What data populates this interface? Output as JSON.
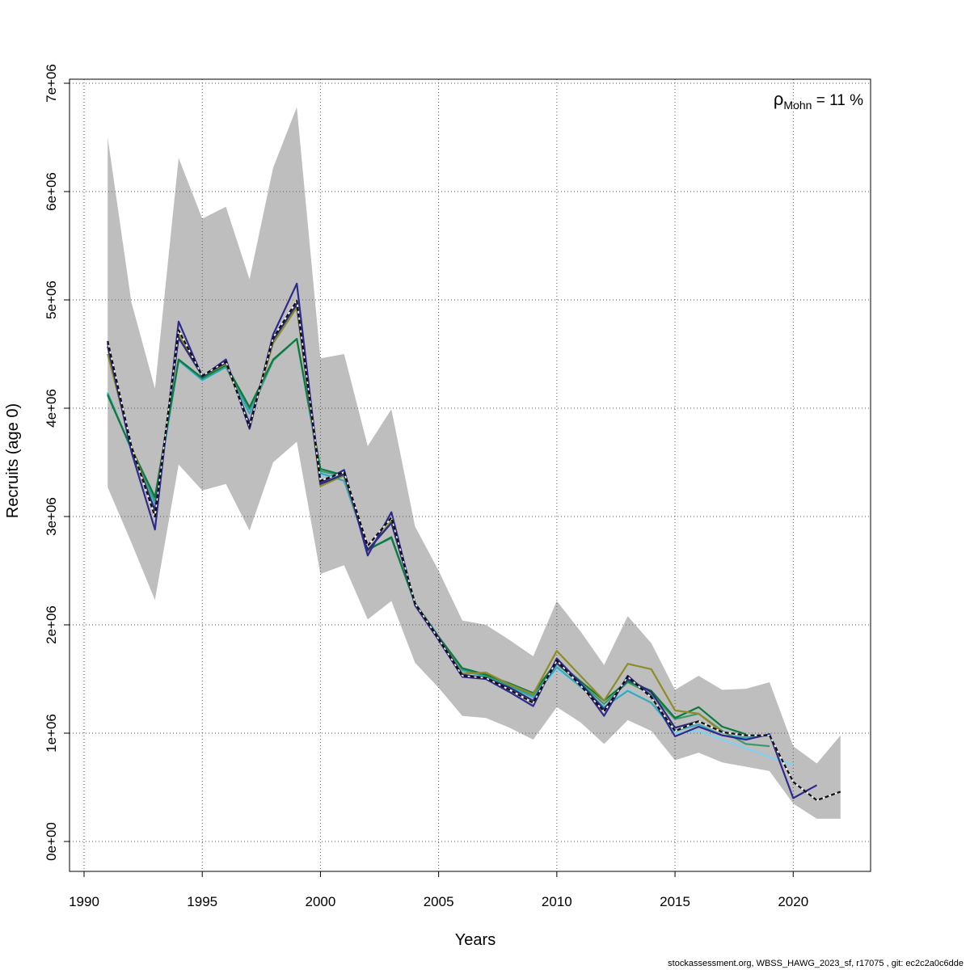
{
  "chart_data": {
    "type": "line",
    "xlabel": "Years",
    "ylabel": "Recruits (age 0)",
    "xlim": [
      1990,
      2023
    ],
    "ylim": [
      -300000,
      7030000
    ],
    "x_ticks": [
      1990,
      1995,
      2000,
      2005,
      2010,
      2015,
      2020
    ],
    "x_tick_labels": [
      "1990",
      "1995",
      "2000",
      "2005",
      "2010",
      "2015",
      "2020"
    ],
    "y_ticks": [
      0,
      1000000,
      2000000,
      3000000,
      4000000,
      5000000,
      6000000,
      7000000
    ],
    "y_tick_labels": [
      "0e+00",
      "1e+06",
      "2e+06",
      "3e+06",
      "4e+06",
      "5e+06",
      "6e+06",
      "7e+06"
    ],
    "grid": true,
    "annotation": {
      "symbol": "ρ",
      "subscript": "Mohn",
      "text": " = 11 %"
    },
    "confidence_band": {
      "x": [
        1991,
        1992,
        1993,
        1994,
        1995,
        1996,
        1997,
        1998,
        1999,
        2000,
        2001,
        2002,
        2003,
        2004,
        2005,
        2006,
        2007,
        2008,
        2009,
        2010,
        2011,
        2012,
        2013,
        2014,
        2015,
        2016,
        2017,
        2018,
        2019,
        2020,
        2021,
        2022
      ],
      "upper": [
        6500000,
        4980000,
        4180000,
        6310000,
        5750000,
        5860000,
        5190000,
        6220000,
        6780000,
        4460000,
        4500000,
        3650000,
        3990000,
        2910000,
        2500000,
        2040000,
        2000000,
        1860000,
        1710000,
        2220000,
        1940000,
        1630000,
        2080000,
        1830000,
        1400000,
        1530000,
        1400000,
        1410000,
        1470000,
        880000,
        720000,
        980000
      ],
      "lower": [
        3270000,
        2760000,
        2230000,
        3480000,
        3240000,
        3300000,
        2870000,
        3500000,
        3690000,
        2470000,
        2550000,
        2050000,
        2220000,
        1650000,
        1420000,
        1160000,
        1140000,
        1050000,
        940000,
        1240000,
        1100000,
        900000,
        1120000,
        1020000,
        750000,
        820000,
        730000,
        690000,
        650000,
        350000,
        210000,
        210000
      ],
      "color": "#bebebe"
    },
    "series": [
      {
        "color": "#80d0f0",
        "dashed": false,
        "x": [
          1991,
          1992,
          1993,
          1994,
          1995,
          1996,
          1997,
          1998,
          1999,
          2000,
          2001,
          2002,
          2003,
          2004,
          2005,
          2006,
          2007,
          2008,
          2009,
          2010,
          2011,
          2012,
          2013,
          2014,
          2015,
          2016,
          2017,
          2018,
          2019,
          2020
        ],
        "values": [
          4150000,
          3610000,
          3100000,
          4440000,
          4250000,
          4380000,
          3960000,
          4440000,
          4640000,
          3380000,
          3380000,
          2700000,
          2800000,
          2200000,
          1890000,
          1580000,
          1530000,
          1440000,
          1340000,
          1590000,
          1440000,
          1240000,
          1400000,
          1280000,
          1000000,
          1020000,
          940000,
          860000,
          780000,
          710000
        ]
      },
      {
        "color": "#3aa8b8",
        "dashed": false,
        "x": [
          1991,
          1992,
          1993,
          1994,
          1995,
          1996,
          1997,
          1998,
          1999,
          2000,
          2001,
          2002,
          2003,
          2004,
          2005,
          2006,
          2007,
          2008,
          2009,
          2010,
          2011,
          2012,
          2013,
          2014,
          2015,
          2016,
          2017,
          2018,
          2019
        ],
        "values": [
          4140000,
          3620000,
          3120000,
          4440000,
          4260000,
          4380000,
          3950000,
          4440000,
          4640000,
          3400000,
          3330000,
          2700000,
          2800000,
          2200000,
          1890000,
          1580000,
          1520000,
          1430000,
          1330000,
          1610000,
          1430000,
          1240000,
          1390000,
          1280000,
          1020000,
          1080000,
          980000,
          960000,
          980000
        ]
      },
      {
        "color": "#3c9a73",
        "dashed": false,
        "x": [
          1991,
          1992,
          1993,
          1994,
          1995,
          1996,
          1997,
          1998,
          1999,
          2000,
          2001,
          2002,
          2003,
          2004,
          2005,
          2006,
          2007,
          2008,
          2009,
          2010,
          2011,
          2012,
          2013,
          2014,
          2015,
          2016,
          2017,
          2018,
          2019
        ],
        "values": [
          4130000,
          3620000,
          3150000,
          4450000,
          4270000,
          4390000,
          3990000,
          4440000,
          4640000,
          3420000,
          3370000,
          2700000,
          2800000,
          2200000,
          1890000,
          1590000,
          1530000,
          1440000,
          1350000,
          1640000,
          1460000,
          1270000,
          1470000,
          1360000,
          1130000,
          1180000,
          1020000,
          900000,
          880000
        ]
      },
      {
        "color": "#0c7a3e",
        "dashed": false,
        "x": [
          1991,
          1992,
          1993,
          1994,
          1995,
          1996,
          1997,
          1998,
          1999,
          2000,
          2001,
          2002,
          2003,
          2004,
          2005,
          2006,
          2007,
          2008,
          2009,
          2010,
          2011,
          2012,
          2013,
          2014,
          2015,
          2016,
          2017,
          2018
        ],
        "values": [
          4120000,
          3630000,
          3180000,
          4450000,
          4280000,
          4400000,
          4010000,
          4450000,
          4640000,
          3440000,
          3380000,
          2690000,
          2810000,
          2200000,
          1890000,
          1600000,
          1540000,
          1460000,
          1370000,
          1660000,
          1480000,
          1300000,
          1480000,
          1390000,
          1140000,
          1240000,
          1060000,
          990000
        ]
      },
      {
        "color": "#8c8c2a",
        "dashed": false,
        "x": [
          1991,
          1992,
          1993,
          1994,
          1995,
          1996,
          1997,
          1998,
          1999,
          2000,
          2001,
          2002,
          2003,
          2004,
          2005,
          2006,
          2007,
          2008,
          2009,
          2010,
          2011,
          2012,
          2013,
          2014,
          2015,
          2016,
          2017
        ],
        "values": [
          4500000,
          3650000,
          3050000,
          4680000,
          4300000,
          4410000,
          3850000,
          4600000,
          4930000,
          3280000,
          3380000,
          2680000,
          2960000,
          2200000,
          1880000,
          1550000,
          1560000,
          1450000,
          1360000,
          1760000,
          1530000,
          1300000,
          1640000,
          1590000,
          1210000,
          1180000,
          1010000
        ]
      },
      {
        "color": "#2c2c7c",
        "dashed": false,
        "x": [
          1991,
          1992,
          1993,
          1994,
          1995,
          1996,
          1997,
          1998,
          1999,
          2000,
          2001,
          2002,
          2003,
          2004,
          2005,
          2006,
          2007,
          2008,
          2009,
          2010,
          2011,
          2012,
          2013,
          2014,
          2015,
          2016
        ],
        "values": [
          4570000,
          3620000,
          3060000,
          4650000,
          4300000,
          4420000,
          3860000,
          4630000,
          4960000,
          3300000,
          3390000,
          2690000,
          2940000,
          2200000,
          1880000,
          1540000,
          1510000,
          1420000,
          1300000,
          1650000,
          1460000,
          1220000,
          1500000,
          1380000,
          1050000,
          1110000
        ]
      },
      {
        "color": "#2e2a8c",
        "dashed": false,
        "x": [
          1991,
          1992,
          1993,
          1994,
          1995,
          1996,
          1997,
          1998,
          1999,
          2000,
          2001,
          2002,
          2003,
          2004,
          2005,
          2006,
          2007,
          2008,
          2009,
          2010,
          2011,
          2012,
          2013,
          2014,
          2015,
          2016,
          2017,
          2018,
          2019,
          2020,
          2021
        ],
        "values": [
          4600000,
          3600000,
          2880000,
          4800000,
          4290000,
          4450000,
          3810000,
          4680000,
          5150000,
          3310000,
          3430000,
          2640000,
          3040000,
          2180000,
          1860000,
          1520000,
          1500000,
          1380000,
          1250000,
          1690000,
          1460000,
          1160000,
          1530000,
          1340000,
          970000,
          1060000,
          980000,
          940000,
          990000,
          400000,
          520000
        ]
      },
      {
        "color": "#111111",
        "dashed": true,
        "x": [
          1991,
          1992,
          1993,
          1994,
          1995,
          1996,
          1997,
          1998,
          1999,
          2000,
          2001,
          2002,
          2003,
          2004,
          2005,
          2006,
          2007,
          2008,
          2009,
          2010,
          2011,
          2012,
          2013,
          2014,
          2015,
          2016,
          2017,
          2018,
          2019,
          2020,
          2021,
          2022
        ],
        "values": [
          4620000,
          3650000,
          3000000,
          4720000,
          4300000,
          4430000,
          3830000,
          4650000,
          4990000,
          3330000,
          3410000,
          2730000,
          2990000,
          2200000,
          1870000,
          1530000,
          1510000,
          1400000,
          1280000,
          1670000,
          1440000,
          1200000,
          1520000,
          1330000,
          1020000,
          1110000,
          1010000,
          980000,
          980000,
          550000,
          380000,
          460000
        ]
      }
    ]
  },
  "footer": "stockassessment.org, WBSS_HAWG_2023_sf, r17075 , git: ec2c2a0c6dde"
}
